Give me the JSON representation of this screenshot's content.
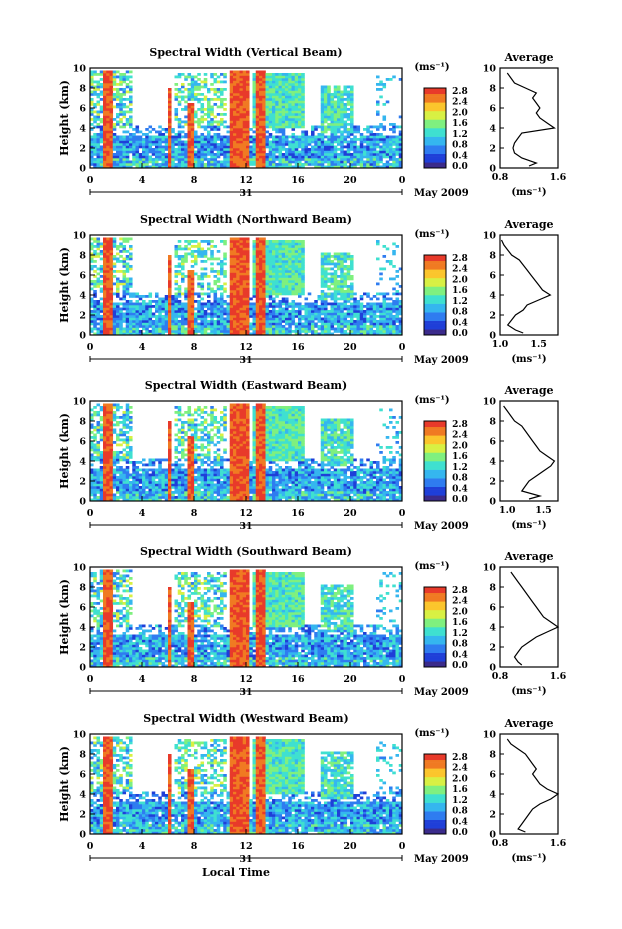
{
  "figure": {
    "colorbar_ticks": [
      "0.0",
      "0.4",
      "0.8",
      "1.2",
      "1.6",
      "2.0",
      "2.4",
      "2.8"
    ],
    "colorbar_unit": "(ms⁻¹)",
    "ylabel": "Height (km)",
    "time_ticks": [
      "0",
      "4",
      "8",
      "12",
      "16",
      "20",
      "0"
    ],
    "day_label": "31",
    "month_label": "May 2009",
    "xlabel": "Local Time",
    "avg_title": "Average",
    "avg_unit": "(ms⁻¹)",
    "height_ticks": [
      "0",
      "2",
      "4",
      "6",
      "8",
      "10"
    ],
    "avg_height_ticks": [
      "0",
      "2",
      "4",
      "6",
      "8",
      "10"
    ]
  },
  "chart_data": [
    {
      "type": "heatmap",
      "title": "Spectral Width (Vertical Beam)",
      "x_range_hours": [
        0,
        24
      ],
      "y_range_km": [
        0,
        10
      ],
      "color_range": [
        0.0,
        2.8
      ],
      "average_profile": {
        "xlim": [
          0.8,
          1.6
        ],
        "xticks": [
          "0.8",
          "1.6"
        ],
        "height_km": [
          0.2,
          0.5,
          1,
          1.5,
          2,
          2.5,
          3,
          3.5,
          4,
          4.5,
          5,
          5.5,
          6,
          6.5,
          7,
          7.5,
          8,
          8.5,
          9,
          9.5
        ],
        "width_ms": [
          1.2,
          1.3,
          1.1,
          1.0,
          0.98,
          1.0,
          1.05,
          1.1,
          1.55,
          1.45,
          1.35,
          1.3,
          1.35,
          1.3,
          1.25,
          1.3,
          1.15,
          1.0,
          0.95,
          0.9
        ]
      }
    },
    {
      "type": "heatmap",
      "title": "Spectral Width (Northward Beam)",
      "x_range_hours": [
        0,
        24
      ],
      "y_range_km": [
        0,
        10
      ],
      "color_range": [
        0.0,
        2.8
      ],
      "average_profile": {
        "xlim": [
          1.0,
          1.75
        ],
        "xticks": [
          "1.0",
          "1.5"
        ],
        "height_km": [
          0.2,
          0.5,
          1,
          1.5,
          2,
          2.5,
          3,
          3.5,
          4,
          4.5,
          5,
          5.5,
          6,
          6.5,
          7,
          7.5,
          8,
          8.5,
          9,
          9.5
        ],
        "width_ms": [
          1.3,
          1.2,
          1.1,
          1.15,
          1.2,
          1.3,
          1.35,
          1.5,
          1.65,
          1.55,
          1.5,
          1.45,
          1.4,
          1.35,
          1.3,
          1.25,
          1.15,
          1.1,
          1.05,
          1.02
        ]
      }
    },
    {
      "type": "heatmap",
      "title": "Spectral Width (Eastward Beam)",
      "x_range_hours": [
        0,
        24
      ],
      "y_range_km": [
        0,
        10
      ],
      "color_range": [
        0.0,
        2.8
      ],
      "average_profile": {
        "xlim": [
          0.9,
          1.7
        ],
        "xticks": [
          "1.0",
          "1.5"
        ],
        "height_km": [
          0.2,
          0.5,
          1,
          1.5,
          2,
          2.5,
          3,
          3.5,
          4,
          4.5,
          5,
          5.5,
          6,
          6.5,
          7,
          7.5,
          8,
          8.5,
          9,
          9.5
        ],
        "width_ms": [
          1.3,
          1.45,
          1.2,
          1.25,
          1.3,
          1.4,
          1.5,
          1.6,
          1.65,
          1.55,
          1.45,
          1.4,
          1.35,
          1.3,
          1.25,
          1.2,
          1.1,
          1.05,
          1.0,
          0.95
        ]
      }
    },
    {
      "type": "heatmap",
      "title": "Spectral Width (Southward Beam)",
      "x_range_hours": [
        0,
        24
      ],
      "y_range_km": [
        0,
        10
      ],
      "color_range": [
        0.0,
        2.8
      ],
      "average_profile": {
        "xlim": [
          0.8,
          1.6
        ],
        "xticks": [
          "0.8",
          "1.6"
        ],
        "height_km": [
          0.2,
          0.5,
          1,
          1.5,
          2,
          2.5,
          3,
          3.5,
          4,
          4.5,
          5,
          5.5,
          6,
          6.5,
          7,
          7.5,
          8,
          8.5,
          9,
          9.5
        ],
        "width_ms": [
          1.1,
          1.05,
          1.0,
          1.05,
          1.1,
          1.2,
          1.3,
          1.45,
          1.6,
          1.5,
          1.4,
          1.35,
          1.3,
          1.25,
          1.2,
          1.15,
          1.1,
          1.05,
          1.0,
          0.95
        ]
      }
    },
    {
      "type": "heatmap",
      "title": "Spectral Width (Westward Beam)",
      "x_range_hours": [
        0,
        24
      ],
      "y_range_km": [
        0,
        10
      ],
      "color_range": [
        0.0,
        2.8
      ],
      "average_profile": {
        "xlim": [
          0.8,
          1.6
        ],
        "xticks": [
          "0.8",
          "1.6"
        ],
        "height_km": [
          0.2,
          0.5,
          1,
          1.5,
          2,
          2.5,
          3,
          3.5,
          4,
          4.5,
          5,
          5.5,
          6,
          6.5,
          7,
          7.5,
          8,
          8.5,
          9,
          9.5
        ],
        "width_ms": [
          1.15,
          1.05,
          1.1,
          1.15,
          1.2,
          1.25,
          1.35,
          1.5,
          1.6,
          1.45,
          1.35,
          1.3,
          1.25,
          1.3,
          1.25,
          1.2,
          1.15,
          1.05,
          0.95,
          0.9
        ]
      }
    }
  ]
}
